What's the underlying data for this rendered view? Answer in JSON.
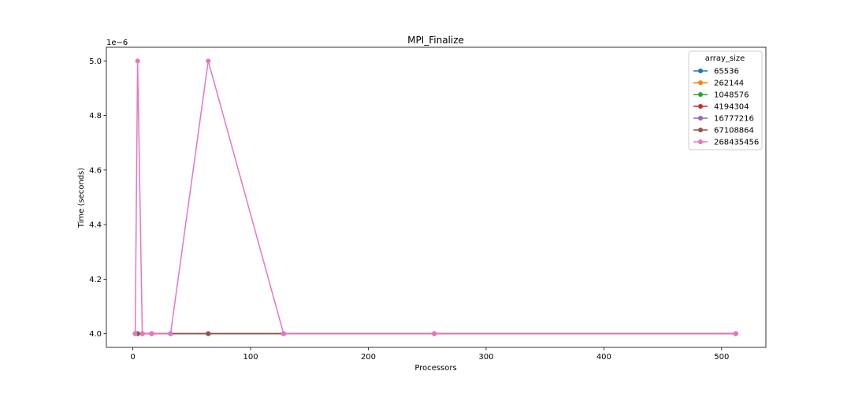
{
  "chart_data": {
    "type": "line",
    "title": "MPI_Finalize",
    "xlabel": "Processors",
    "ylabel": "Time (seconds)",
    "offset_text": "1e−6",
    "xlim": [
      -22.5,
      537.6
    ],
    "ylim": [
      3.95,
      5.05
    ],
    "xticks": [
      0,
      100,
      200,
      300,
      400,
      500
    ],
    "xtick_labels": [
      "0",
      "100",
      "200",
      "300",
      "400",
      "500"
    ],
    "yticks": [
      4.0,
      4.2,
      4.4,
      4.6,
      4.8,
      5.0
    ],
    "ytick_labels": [
      "4.0",
      "4.2",
      "4.4",
      "4.6",
      "4.8",
      "5.0"
    ],
    "grid": false,
    "legend": {
      "title": "array_size",
      "placement": "top-right"
    },
    "x": [
      2,
      4,
      8,
      16,
      32,
      64,
      128,
      256,
      512
    ],
    "series": [
      {
        "name": "65536",
        "color": "#1f77b4",
        "values": [
          4,
          4,
          4,
          4,
          4,
          4,
          4,
          4,
          4
        ]
      },
      {
        "name": "262144",
        "color": "#ff7f0e",
        "values": [
          4,
          4,
          4,
          4,
          4,
          4,
          4,
          4,
          4
        ]
      },
      {
        "name": "1048576",
        "color": "#2ca02c",
        "values": [
          4,
          4,
          4,
          4,
          4,
          4,
          4,
          4,
          4
        ]
      },
      {
        "name": "4194304",
        "color": "#d62728",
        "values": [
          4,
          4,
          4,
          4,
          4,
          4,
          4,
          4,
          4
        ]
      },
      {
        "name": "16777216",
        "color": "#9467bd",
        "values": [
          4,
          4,
          4,
          4,
          4,
          4,
          4,
          4,
          4
        ]
      },
      {
        "name": "67108864",
        "color": "#8c564b",
        "values": [
          4,
          4,
          4,
          4,
          4,
          4,
          4,
          4,
          4
        ]
      },
      {
        "name": "268435456",
        "color": "#e377c2",
        "values": [
          4,
          5,
          4,
          4,
          4,
          5,
          4,
          4,
          4
        ]
      }
    ]
  }
}
